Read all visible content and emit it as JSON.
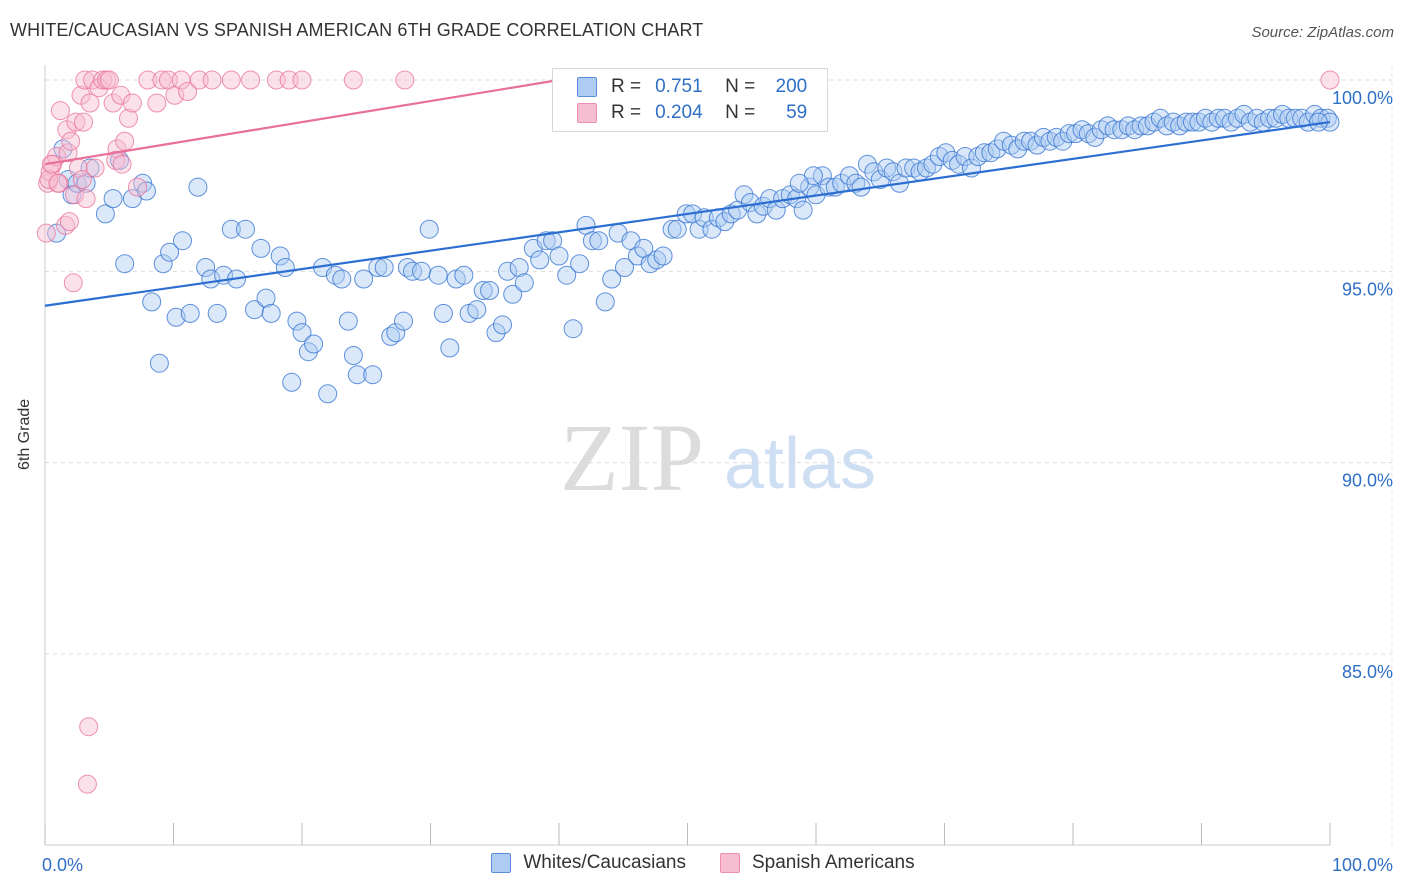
{
  "title": "WHITE/CAUCASIAN VS SPANISH AMERICAN 6TH GRADE CORRELATION CHART",
  "source": "Source: ZipAtlas.com",
  "watermark": {
    "zip": "ZIP",
    "atlas": "atlas"
  },
  "legend": {
    "rows": [
      {
        "r_label": "R =",
        "r_value": "0.751",
        "n_label": "N =",
        "n_value": "200",
        "color": "#5b8fde",
        "fill": "#aecbf2"
      },
      {
        "r_label": "R =",
        "r_value": "0.204",
        "n_label": "N =",
        "n_value": "59",
        "color": "#ec8fb0",
        "fill": "#f7bdd0"
      }
    ]
  },
  "bottom_legend": {
    "series1": "Whites/Caucasians",
    "series2": "Spanish Americans"
  },
  "chart_data": {
    "type": "scatter",
    "title": "WHITE/CAUCASIAN VS SPANISH AMERICAN 6TH GRADE CORRELATION CHART",
    "ylabel": "6th Grade",
    "xlabel": "",
    "x_tick_labels": [
      "0.0%",
      "100.0%"
    ],
    "y_tick_labels": [
      "85.0%",
      "90.0%",
      "95.0%",
      "100.0%"
    ],
    "xlim": [
      0,
      100
    ],
    "ylim": [
      80.5,
      100.3
    ],
    "grid": true,
    "legend_position": "top-center",
    "series": [
      {
        "name": "Whites/Caucasians",
        "color": "#2d6fd0",
        "fill": "#aecbf2",
        "trend": {
          "x": [
            0,
            100
          ],
          "y": [
            94.1,
            98.9
          ]
        },
        "points": [
          [
            0.9,
            96.0
          ],
          [
            1.4,
            98.2
          ],
          [
            1.8,
            97.4
          ],
          [
            2.1,
            97.0
          ],
          [
            2.5,
            97.3
          ],
          [
            3.2,
            97.3
          ],
          [
            3.5,
            97.7
          ],
          [
            4.7,
            96.5
          ],
          [
            5.3,
            96.9
          ],
          [
            5.8,
            97.9
          ],
          [
            6.2,
            95.2
          ],
          [
            6.8,
            96.9
          ],
          [
            7.6,
            97.3
          ],
          [
            7.9,
            97.1
          ],
          [
            8.3,
            94.2
          ],
          [
            8.9,
            92.6
          ],
          [
            9.2,
            95.2
          ],
          [
            9.7,
            95.5
          ],
          [
            10.2,
            93.8
          ],
          [
            10.7,
            95.8
          ],
          [
            11.3,
            93.9
          ],
          [
            11.9,
            97.2
          ],
          [
            12.5,
            95.1
          ],
          [
            12.9,
            94.8
          ],
          [
            13.4,
            93.9
          ],
          [
            13.9,
            94.9
          ],
          [
            14.5,
            96.1
          ],
          [
            14.9,
            94.8
          ],
          [
            15.6,
            96.1
          ],
          [
            16.3,
            94.0
          ],
          [
            16.8,
            95.6
          ],
          [
            17.2,
            94.3
          ],
          [
            17.6,
            93.9
          ],
          [
            18.3,
            95.4
          ],
          [
            18.7,
            95.1
          ],
          [
            19.2,
            92.1
          ],
          [
            19.6,
            93.7
          ],
          [
            20.0,
            93.4
          ],
          [
            20.5,
            92.9
          ],
          [
            20.9,
            93.1
          ],
          [
            21.6,
            95.1
          ],
          [
            22.0,
            91.8
          ],
          [
            22.6,
            94.9
          ],
          [
            23.1,
            94.8
          ],
          [
            23.6,
            93.7
          ],
          [
            24.0,
            92.8
          ],
          [
            24.3,
            92.3
          ],
          [
            24.8,
            94.8
          ],
          [
            25.5,
            92.3
          ],
          [
            25.9,
            95.1
          ],
          [
            26.4,
            95.1
          ],
          [
            26.9,
            93.3
          ],
          [
            27.3,
            93.4
          ],
          [
            27.9,
            93.7
          ],
          [
            28.2,
            95.1
          ],
          [
            28.6,
            95.0
          ],
          [
            29.3,
            95.0
          ],
          [
            29.9,
            96.1
          ],
          [
            30.6,
            94.9
          ],
          [
            31.0,
            93.9
          ],
          [
            31.5,
            93.0
          ],
          [
            32.0,
            94.8
          ],
          [
            32.6,
            94.9
          ],
          [
            33.0,
            93.9
          ],
          [
            33.6,
            94.0
          ],
          [
            34.1,
            94.5
          ],
          [
            34.6,
            94.5
          ],
          [
            35.1,
            93.4
          ],
          [
            35.6,
            93.6
          ],
          [
            36.0,
            95.0
          ],
          [
            36.4,
            94.4
          ],
          [
            36.9,
            95.1
          ],
          [
            37.3,
            94.7
          ],
          [
            38.0,
            95.6
          ],
          [
            38.5,
            95.3
          ],
          [
            39.0,
            95.8
          ],
          [
            39.5,
            95.8
          ],
          [
            40.0,
            95.4
          ],
          [
            40.6,
            94.9
          ],
          [
            41.1,
            93.5
          ],
          [
            41.6,
            95.2
          ],
          [
            42.1,
            96.2
          ],
          [
            42.6,
            95.8
          ],
          [
            43.1,
            95.8
          ],
          [
            43.6,
            94.2
          ],
          [
            44.1,
            94.8
          ],
          [
            44.6,
            96.0
          ],
          [
            45.1,
            95.1
          ],
          [
            45.6,
            95.8
          ],
          [
            46.1,
            95.4
          ],
          [
            46.6,
            95.6
          ],
          [
            47.1,
            95.2
          ],
          [
            47.6,
            95.3
          ],
          [
            48.1,
            95.4
          ],
          [
            48.8,
            96.1
          ],
          [
            49.2,
            96.1
          ],
          [
            49.9,
            96.5
          ],
          [
            50.4,
            96.5
          ],
          [
            50.9,
            96.1
          ],
          [
            51.3,
            96.4
          ],
          [
            51.9,
            96.1
          ],
          [
            52.4,
            96.4
          ],
          [
            52.9,
            96.3
          ],
          [
            53.4,
            96.5
          ],
          [
            53.9,
            96.6
          ],
          [
            54.4,
            97.0
          ],
          [
            54.9,
            96.8
          ],
          [
            55.4,
            96.5
          ],
          [
            55.9,
            96.7
          ],
          [
            56.4,
            96.9
          ],
          [
            56.9,
            96.6
          ],
          [
            57.4,
            96.9
          ],
          [
            58.0,
            97.0
          ],
          [
            58.5,
            96.9
          ],
          [
            59.0,
            96.6
          ],
          [
            59.5,
            97.2
          ],
          [
            60.0,
            97.0
          ],
          [
            60.5,
            97.5
          ],
          [
            61.0,
            97.2
          ],
          [
            61.5,
            97.2
          ],
          [
            62.0,
            97.3
          ],
          [
            62.6,
            97.5
          ],
          [
            63.1,
            97.3
          ],
          [
            63.5,
            97.2
          ],
          [
            64.0,
            97.8
          ],
          [
            64.5,
            97.6
          ],
          [
            65.0,
            97.4
          ],
          [
            65.5,
            97.7
          ],
          [
            66.0,
            97.6
          ],
          [
            66.5,
            97.3
          ],
          [
            67.0,
            97.7
          ],
          [
            67.6,
            97.7
          ],
          [
            68.1,
            97.6
          ],
          [
            68.6,
            97.7
          ],
          [
            69.1,
            97.8
          ],
          [
            69.6,
            98.0
          ],
          [
            70.1,
            98.1
          ],
          [
            70.6,
            97.9
          ],
          [
            71.1,
            97.8
          ],
          [
            71.6,
            98.0
          ],
          [
            72.1,
            97.7
          ],
          [
            72.6,
            98.0
          ],
          [
            73.1,
            98.1
          ],
          [
            73.6,
            98.1
          ],
          [
            74.1,
            98.2
          ],
          [
            74.6,
            98.4
          ],
          [
            75.2,
            98.3
          ],
          [
            75.7,
            98.2
          ],
          [
            76.2,
            98.4
          ],
          [
            76.7,
            98.4
          ],
          [
            77.2,
            98.3
          ],
          [
            77.7,
            98.5
          ],
          [
            78.2,
            98.4
          ],
          [
            78.7,
            98.5
          ],
          [
            79.2,
            98.4
          ],
          [
            79.7,
            98.6
          ],
          [
            80.2,
            98.6
          ],
          [
            80.7,
            98.7
          ],
          [
            81.2,
            98.6
          ],
          [
            81.7,
            98.5
          ],
          [
            82.2,
            98.7
          ],
          [
            82.7,
            98.8
          ],
          [
            83.2,
            98.7
          ],
          [
            83.8,
            98.7
          ],
          [
            84.3,
            98.8
          ],
          [
            84.8,
            98.7
          ],
          [
            85.3,
            98.8
          ],
          [
            85.8,
            98.8
          ],
          [
            86.3,
            98.9
          ],
          [
            86.8,
            99.0
          ],
          [
            87.3,
            98.8
          ],
          [
            87.8,
            98.9
          ],
          [
            88.3,
            98.8
          ],
          [
            88.8,
            98.9
          ],
          [
            89.3,
            98.9
          ],
          [
            89.8,
            98.9
          ],
          [
            90.3,
            99.0
          ],
          [
            90.8,
            98.9
          ],
          [
            91.3,
            99.0
          ],
          [
            91.8,
            99.0
          ],
          [
            92.3,
            98.9
          ],
          [
            92.8,
            99.0
          ],
          [
            93.3,
            99.1
          ],
          [
            93.8,
            98.9
          ],
          [
            94.3,
            99.0
          ],
          [
            94.8,
            98.9
          ],
          [
            95.3,
            99.0
          ],
          [
            95.8,
            99.0
          ],
          [
            96.3,
            99.1
          ],
          [
            96.8,
            99.0
          ],
          [
            97.3,
            99.0
          ],
          [
            97.8,
            99.0
          ],
          [
            98.3,
            98.9
          ],
          [
            98.8,
            99.1
          ],
          [
            99.3,
            99.0
          ],
          [
            99.8,
            99.0
          ],
          [
            100.0,
            98.9
          ],
          [
            99.1,
            98.9
          ],
          [
            59.8,
            97.5
          ],
          [
            58.7,
            97.3
          ]
        ]
      },
      {
        "name": "Spanish Americans",
        "color": "#e8709a",
        "fill": "#f7bdd0",
        "trend": {
          "x": [
            0,
            40
          ],
          "y": [
            97.8,
            100.0
          ]
        },
        "points": [
          [
            0.1,
            96.0
          ],
          [
            0.2,
            97.3
          ],
          [
            0.4,
            97.6
          ],
          [
            0.6,
            97.8
          ],
          [
            0.9,
            98.0
          ],
          [
            1.1,
            97.3
          ],
          [
            1.2,
            99.2
          ],
          [
            1.6,
            96.2
          ],
          [
            1.7,
            98.7
          ],
          [
            1.8,
            98.1
          ],
          [
            1.9,
            96.3
          ],
          [
            2.0,
            98.4
          ],
          [
            2.2,
            94.7
          ],
          [
            2.3,
            97.0
          ],
          [
            2.4,
            98.9
          ],
          [
            2.6,
            97.7
          ],
          [
            2.8,
            99.6
          ],
          [
            2.9,
            97.4
          ],
          [
            3.0,
            98.9
          ],
          [
            3.1,
            100.0
          ],
          [
            3.2,
            96.9
          ],
          [
            3.3,
            81.6
          ],
          [
            3.4,
            83.1
          ],
          [
            3.5,
            99.4
          ],
          [
            3.7,
            100.0
          ],
          [
            3.9,
            97.7
          ],
          [
            4.2,
            99.8
          ],
          [
            4.5,
            100.0
          ],
          [
            4.8,
            100.0
          ],
          [
            5.0,
            100.0
          ],
          [
            5.3,
            99.4
          ],
          [
            5.6,
            98.2
          ],
          [
            5.9,
            99.6
          ],
          [
            6.2,
            98.4
          ],
          [
            6.5,
            99.0
          ],
          [
            6.8,
            99.4
          ],
          [
            7.2,
            97.2
          ],
          [
            8.0,
            100.0
          ],
          [
            8.7,
            99.4
          ],
          [
            9.1,
            100.0
          ],
          [
            9.6,
            100.0
          ],
          [
            10.1,
            99.6
          ],
          [
            10.6,
            100.0
          ],
          [
            11.1,
            99.7
          ],
          [
            12.0,
            100.0
          ],
          [
            13.0,
            100.0
          ],
          [
            14.5,
            100.0
          ],
          [
            16.0,
            100.0
          ],
          [
            18.0,
            100.0
          ],
          [
            19.0,
            100.0
          ],
          [
            20.0,
            100.0
          ],
          [
            24.0,
            100.0
          ],
          [
            28.0,
            100.0
          ],
          [
            100.0,
            100.0
          ],
          [
            5.5,
            97.9
          ],
          [
            6.0,
            97.8
          ],
          [
            0.3,
            97.4
          ],
          [
            1.0,
            97.3
          ],
          [
            0.5,
            97.8
          ]
        ]
      }
    ]
  }
}
